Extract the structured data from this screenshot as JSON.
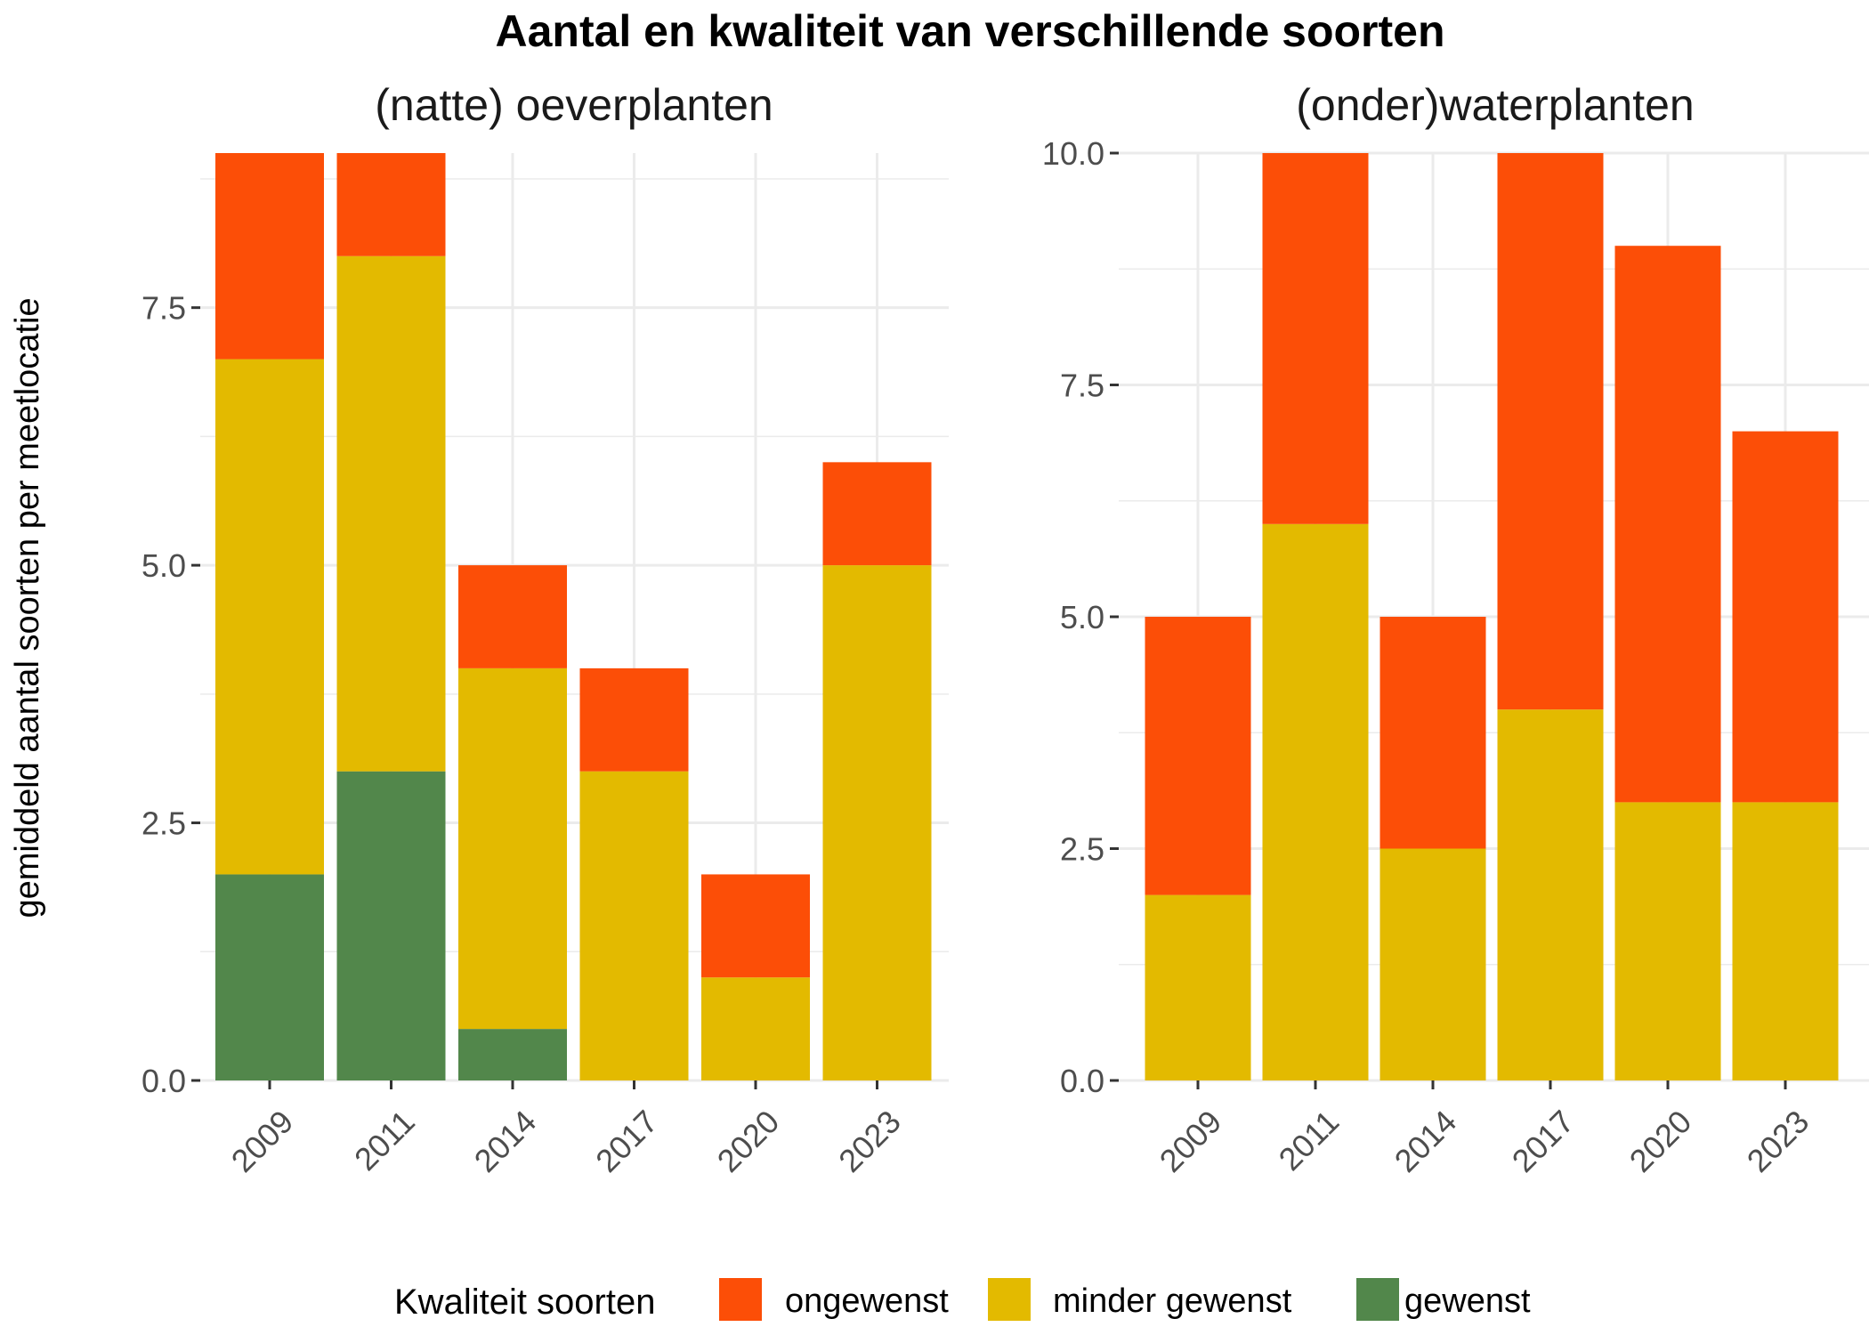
{
  "title": "Aantal en kwaliteit van verschillende soorten",
  "ylabel": "gemiddeld aantal soorten per meetlocatie",
  "legend": {
    "title": "Kwaliteit soorten",
    "items": [
      {
        "label": "ongewenst",
        "color": "#FC4E07"
      },
      {
        "label": "minder gewenst",
        "color": "#E3BA00"
      },
      {
        "label": "gewenst",
        "color": "#52874B"
      }
    ],
    "placement": "bottom"
  },
  "chart_data": [
    {
      "type": "bar",
      "stacked": true,
      "title": "(natte) oeverplanten",
      "categories": [
        "2009",
        "2011",
        "2014",
        "2017",
        "2020",
        "2023"
      ],
      "series": [
        {
          "name": "gewenst",
          "values": [
            2,
            3,
            0.5,
            0,
            0,
            0
          ]
        },
        {
          "name": "minder gewenst",
          "values": [
            5,
            5,
            3.5,
            3,
            1,
            5
          ]
        },
        {
          "name": "ongewenst",
          "values": [
            2,
            1,
            1,
            1,
            1,
            1
          ]
        }
      ],
      "ylim": [
        0,
        9
      ],
      "yticks": [
        "0.0",
        "2.5",
        "5.0",
        "7.5"
      ],
      "grid": true
    },
    {
      "type": "bar",
      "stacked": true,
      "title": "(onder)waterplanten",
      "categories": [
        "2009",
        "2011",
        "2014",
        "2017",
        "2020",
        "2023"
      ],
      "series": [
        {
          "name": "gewenst",
          "values": [
            0,
            0,
            0,
            0,
            0,
            0
          ]
        },
        {
          "name": "minder gewenst",
          "values": [
            2,
            6,
            2.5,
            4,
            3,
            3
          ]
        },
        {
          "name": "ongewenst",
          "values": [
            3,
            4,
            2.5,
            6,
            6,
            4
          ]
        }
      ],
      "ylim": [
        0,
        10
      ],
      "yticks": [
        "0.0",
        "2.5",
        "5.0",
        "7.5",
        "10.0"
      ],
      "grid": true
    }
  ]
}
